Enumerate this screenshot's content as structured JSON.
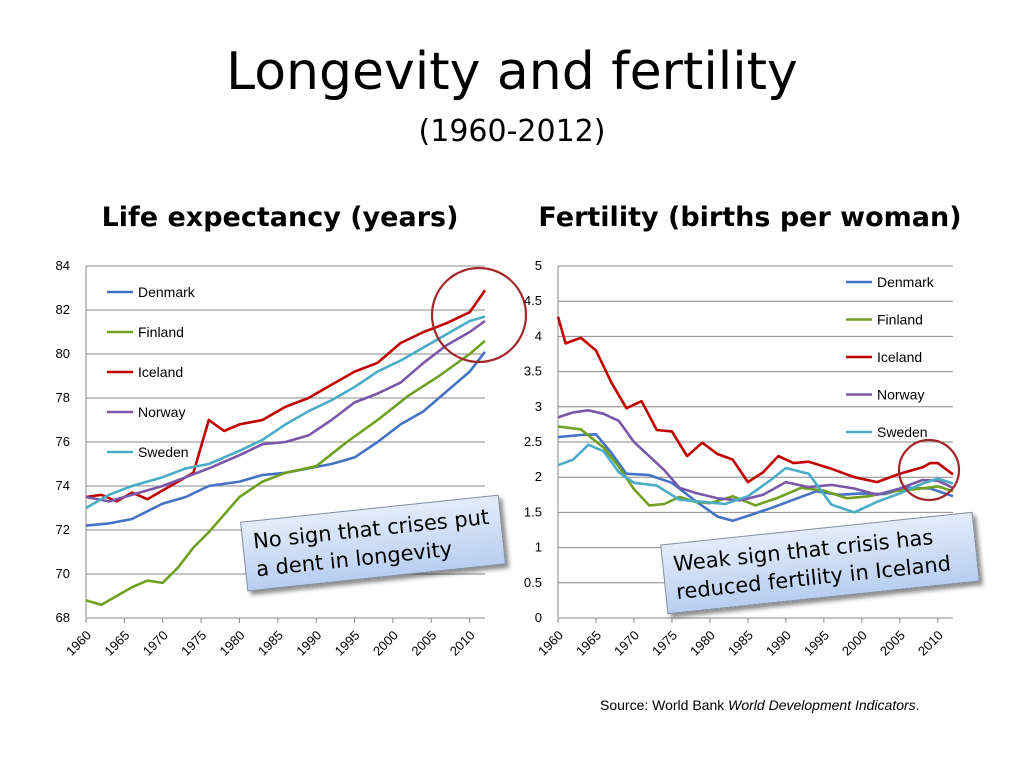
{
  "title": "Longevity and fertility",
  "subtitle": "(1960-2012)",
  "source": {
    "prefix": "Source: World Bank ",
    "italic": "World Development Indicators",
    "suffix": "."
  },
  "callouts": {
    "left": "No sign that crises put a dent in longevity",
    "right": "Weak sign that crisis has reduced fertility in Iceland"
  },
  "colors": {
    "Denmark": "#4472c4",
    "Finland": "#70a020",
    "Iceland": "#c00000",
    "Norway": "#7a57a8",
    "Sweden": "#4bacc6",
    "circle": "#a0282b"
  },
  "chart_data": [
    {
      "type": "line",
      "title": "Life expectancy (years)",
      "xlabel": "",
      "ylabel": "",
      "xlim": [
        1960,
        2012
      ],
      "ylim": [
        68,
        84
      ],
      "yticks": [
        "68",
        "70",
        "72",
        "74",
        "76",
        "78",
        "80",
        "82",
        "84"
      ],
      "xticks": [
        "1960",
        "1965",
        "1970",
        "1975",
        "1980",
        "1985",
        "1990",
        "1995",
        "2000",
        "2005",
        "2010"
      ],
      "legend": "left, stacked",
      "annotation": "circle highlighting 2008-2012",
      "series": [
        {
          "name": "Denmark",
          "x": [
            1960,
            1963,
            1966,
            1970,
            1973,
            1976,
            1980,
            1983,
            1986,
            1989,
            1992,
            1995,
            1998,
            2001,
            2004,
            2007,
            2010,
            2012
          ],
          "values": [
            72.2,
            72.3,
            72.5,
            73.2,
            73.5,
            74.0,
            74.2,
            74.5,
            74.6,
            74.8,
            75.0,
            75.3,
            76.0,
            76.8,
            77.4,
            78.3,
            79.2,
            80.1
          ]
        },
        {
          "name": "Finland",
          "x": [
            1960,
            1962,
            1964,
            1966,
            1968,
            1970,
            1972,
            1974,
            1976,
            1978,
            1980,
            1983,
            1986,
            1990,
            1994,
            1998,
            2002,
            2006,
            2010,
            2012
          ],
          "values": [
            68.8,
            68.6,
            69.0,
            69.4,
            69.7,
            69.6,
            70.3,
            71.2,
            71.9,
            72.7,
            73.5,
            74.2,
            74.6,
            74.9,
            76.0,
            77.0,
            78.1,
            79.0,
            80.0,
            80.6
          ]
        },
        {
          "name": "Iceland",
          "x": [
            1960,
            1962,
            1964,
            1966,
            1968,
            1970,
            1972,
            1974,
            1976,
            1978,
            1980,
            1983,
            1986,
            1989,
            1992,
            1995,
            1998,
            2001,
            2004,
            2007,
            2010,
            2012
          ],
          "values": [
            73.5,
            73.6,
            73.3,
            73.7,
            73.4,
            73.8,
            74.2,
            74.6,
            77.0,
            76.5,
            76.8,
            77.0,
            77.6,
            78.0,
            78.6,
            79.2,
            79.6,
            80.5,
            81.0,
            81.4,
            81.9,
            82.9
          ]
        },
        {
          "name": "Norway",
          "x": [
            1960,
            1963,
            1966,
            1970,
            1973,
            1976,
            1980,
            1983,
            1986,
            1989,
            1992,
            1995,
            1998,
            2001,
            2004,
            2007,
            2010,
            2012
          ],
          "values": [
            73.5,
            73.3,
            73.6,
            74.0,
            74.4,
            74.8,
            75.4,
            75.9,
            76.0,
            76.3,
            77.0,
            77.8,
            78.2,
            78.7,
            79.6,
            80.4,
            81.0,
            81.5
          ]
        },
        {
          "name": "Sweden",
          "x": [
            1960,
            1963,
            1966,
            1970,
            1973,
            1976,
            1980,
            1983,
            1986,
            1989,
            1992,
            1995,
            1998,
            2001,
            2004,
            2007,
            2010,
            2012
          ],
          "values": [
            73.0,
            73.6,
            74.0,
            74.4,
            74.8,
            75.0,
            75.6,
            76.1,
            76.8,
            77.4,
            77.9,
            78.5,
            79.2,
            79.7,
            80.3,
            80.9,
            81.5,
            81.7
          ]
        }
      ]
    },
    {
      "type": "line",
      "title": "Fertility (births per woman)",
      "xlabel": "",
      "ylabel": "",
      "xlim": [
        1960,
        2012
      ],
      "ylim": [
        0,
        5
      ],
      "yticks": [
        "0",
        "0.5",
        "1",
        "1.5",
        "2",
        "2.5",
        "3",
        "3.5",
        "4",
        "4.5",
        "5"
      ],
      "xticks": [
        "1960",
        "1965",
        "1970",
        "1975",
        "1980",
        "1985",
        "1990",
        "1995",
        "2000",
        "2005",
        "2010"
      ],
      "legend": "right, stacked",
      "annotation": "circle highlighting 2007-2012",
      "series": [
        {
          "name": "Denmark",
          "x": [
            1960,
            1963,
            1965,
            1967,
            1969,
            1972,
            1975,
            1978,
            1981,
            1983,
            1985,
            1988,
            1991,
            1994,
            1997,
            2000,
            2003,
            2006,
            2009,
            2012
          ],
          "values": [
            2.57,
            2.6,
            2.61,
            2.35,
            2.05,
            2.03,
            1.92,
            1.67,
            1.44,
            1.38,
            1.45,
            1.56,
            1.68,
            1.8,
            1.75,
            1.77,
            1.76,
            1.85,
            1.84,
            1.73
          ]
        },
        {
          "name": "Finland",
          "x": [
            1960,
            1963,
            1966,
            1968,
            1970,
            1972,
            1974,
            1976,
            1978,
            1980,
            1983,
            1986,
            1989,
            1992,
            1995,
            1998,
            2001,
            2004,
            2007,
            2010,
            2012
          ],
          "values": [
            2.72,
            2.68,
            2.42,
            2.15,
            1.83,
            1.6,
            1.62,
            1.72,
            1.65,
            1.63,
            1.73,
            1.6,
            1.71,
            1.85,
            1.81,
            1.7,
            1.73,
            1.8,
            1.83,
            1.87,
            1.8
          ]
        },
        {
          "name": "Iceland",
          "x": [
            1960,
            1961,
            1963,
            1965,
            1967,
            1969,
            1971,
            1973,
            1975,
            1977,
            1979,
            1981,
            1983,
            1985,
            1987,
            1989,
            1991,
            1993,
            1996,
            1999,
            2002,
            2005,
            2008,
            2009,
            2010,
            2012
          ],
          "values": [
            4.28,
            3.9,
            3.98,
            3.8,
            3.35,
            2.98,
            3.08,
            2.67,
            2.65,
            2.3,
            2.49,
            2.33,
            2.25,
            1.93,
            2.07,
            2.3,
            2.2,
            2.22,
            2.12,
            2.0,
            1.93,
            2.05,
            2.14,
            2.2,
            2.2,
            2.04
          ]
        },
        {
          "name": "Norway",
          "x": [
            1960,
            1962,
            1964,
            1966,
            1968,
            1970,
            1972,
            1974,
            1976,
            1978,
            1981,
            1984,
            1987,
            1990,
            1993,
            1996,
            1999,
            2002,
            2005,
            2008,
            2010,
            2012
          ],
          "values": [
            2.85,
            2.92,
            2.95,
            2.9,
            2.8,
            2.5,
            2.3,
            2.1,
            1.85,
            1.78,
            1.7,
            1.67,
            1.75,
            1.93,
            1.86,
            1.89,
            1.84,
            1.75,
            1.84,
            1.96,
            1.95,
            1.85
          ]
        },
        {
          "name": "Sweden",
          "x": [
            1960,
            1962,
            1964,
            1966,
            1968,
            1970,
            1973,
            1976,
            1979,
            1982,
            1985,
            1988,
            1990,
            1993,
            1996,
            1999,
            2002,
            2005,
            2008,
            2010,
            2012
          ],
          "values": [
            2.17,
            2.25,
            2.46,
            2.37,
            2.07,
            1.92,
            1.88,
            1.68,
            1.65,
            1.62,
            1.73,
            1.96,
            2.13,
            2.05,
            1.61,
            1.5,
            1.65,
            1.77,
            1.91,
            1.98,
            1.91
          ]
        }
      ]
    }
  ]
}
